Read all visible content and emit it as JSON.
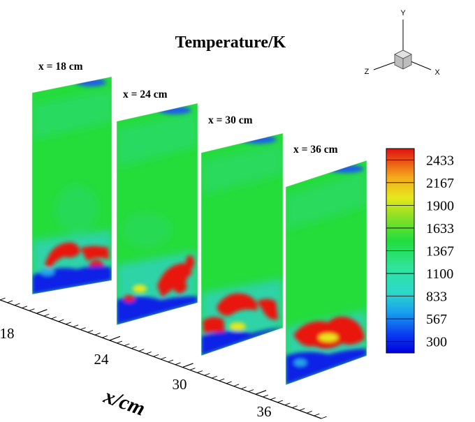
{
  "title": "Temperature/K",
  "colors": {
    "red": "#e8140c",
    "green": "#22dd33",
    "teal": "#2ecc8c",
    "blue": "#1e2ee0",
    "black": "#000000"
  },
  "slices": [
    {
      "label": "x = 18 cm"
    },
    {
      "label": "x = 24 cm"
    },
    {
      "label": "x = 30 cm"
    },
    {
      "label": "x = 36 cm"
    }
  ],
  "colorbar": {
    "levels": [
      "2433",
      "2167",
      "1900",
      "1633",
      "1367",
      "1100",
      "833",
      "567",
      "300"
    ],
    "min": 300,
    "max": 2433
  },
  "axis": {
    "ticks": [
      "18",
      "24",
      "30",
      "36"
    ],
    "title": "x/cm"
  },
  "triad": {
    "y": "Y",
    "z": "Z",
    "x": "X"
  }
}
